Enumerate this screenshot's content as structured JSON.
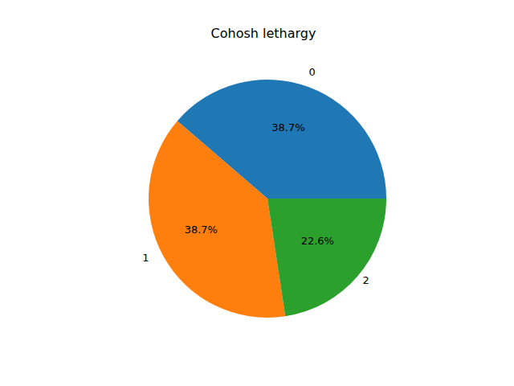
{
  "chart_data": {
    "type": "pie",
    "title": "Cohosh lethargy",
    "categories": [
      "0",
      "1",
      "2"
    ],
    "values": [
      38.7,
      38.7,
      22.6
    ],
    "value_labels": [
      "38.7%",
      "38.7%",
      "22.6%"
    ],
    "colors": [
      "#1f77b4",
      "#ff7f0e",
      "#2ca02c"
    ],
    "data_labels": true
  }
}
